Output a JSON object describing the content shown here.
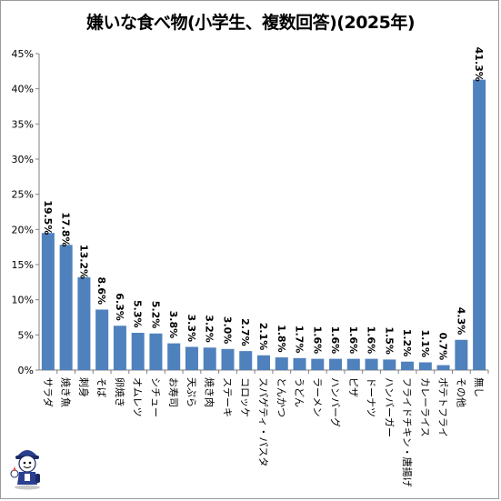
{
  "chart_data": {
    "type": "bar",
    "title": "嫌いな食べ物(小学生、複数回答)(2025年)",
    "categories": [
      "サラダ",
      "焼き魚",
      "刺身",
      "そば",
      "卵焼き",
      "オムレツ",
      "シチュー",
      "お寿司",
      "天ぷら",
      "焼き肉",
      "ステーキ",
      "コロッケ",
      "スパゲティ・パスタ",
      "とんかつ",
      "うどん",
      "ラーメン",
      "ハンバーグ",
      "ピザ",
      "ドーナツ",
      "ハンバーガー",
      "フライドチキン・唐揚げ",
      "カレーライス",
      "ポテトフライ",
      "その他",
      "無し"
    ],
    "values": [
      19.5,
      17.8,
      13.2,
      8.6,
      6.3,
      5.3,
      5.2,
      3.8,
      3.3,
      3.2,
      3.0,
      2.7,
      2.1,
      1.8,
      1.7,
      1.6,
      1.6,
      1.6,
      1.6,
      1.5,
      1.2,
      1.1,
      0.7,
      4.3,
      41.3
    ],
    "value_labels": [
      "19.5%",
      "17.8%",
      "13.2%",
      "8.6%",
      "6.3%",
      "5.3%",
      "5.2%",
      "3.8%",
      "3.3%",
      "3.2%",
      "3.0%",
      "2.7%",
      "2.1%",
      "1.8%",
      "1.7%",
      "1.6%",
      "1.6%",
      "1.6%",
      "1.6%",
      "1.5%",
      "1.2%",
      "1.1%",
      "0.7%",
      "4.3%",
      "41.3%"
    ],
    "yticks": [
      "0%",
      "5%",
      "10%",
      "15%",
      "20%",
      "25%",
      "30%",
      "35%",
      "40%",
      "45%"
    ],
    "ylim": [
      0,
      45
    ],
    "grid": false,
    "bar_color": "#4f81bd",
    "xlabel": "",
    "ylabel": ""
  },
  "mascot_icon": "cartoon-mascot-icon"
}
